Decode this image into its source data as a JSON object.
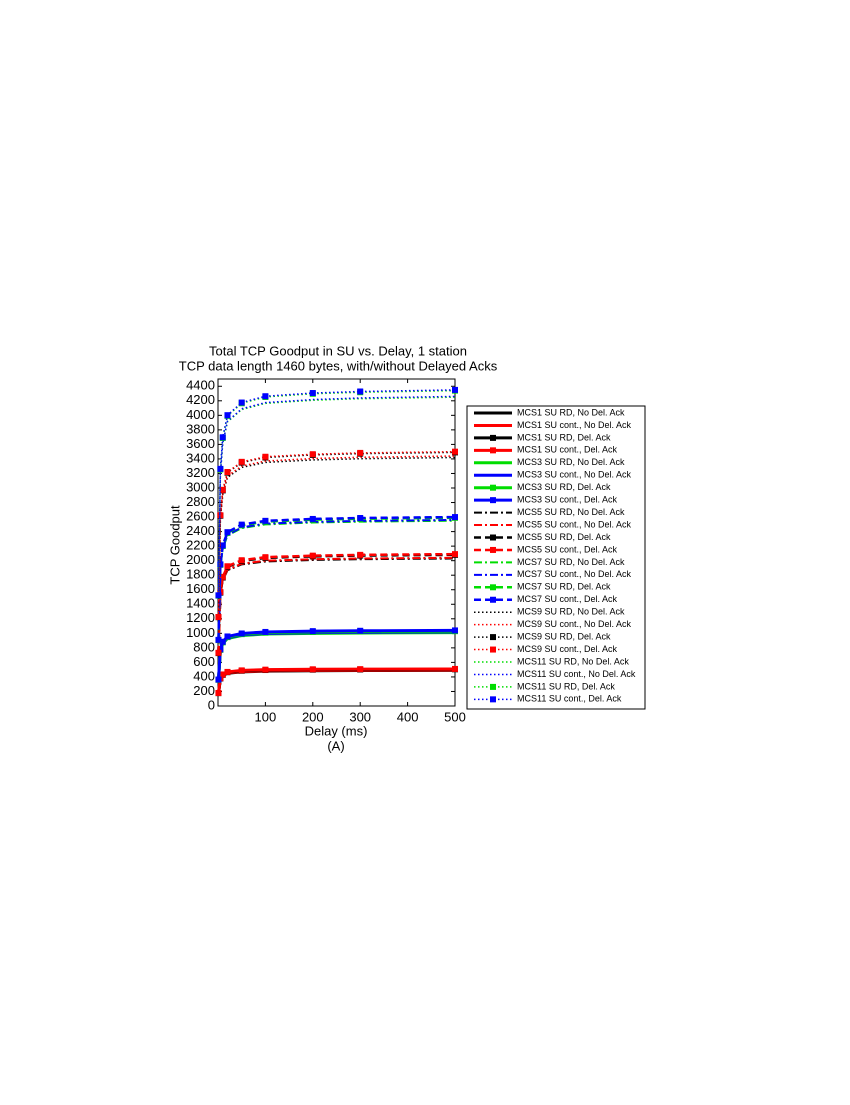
{
  "chart_data": {
    "type": "line",
    "title": "Total TCP Goodput in SU vs. Delay, 1 station",
    "subtitle": "TCP data length 1460 bytes, with/without Delayed Acks",
    "x_label": "Delay (ms)",
    "caption": "(A)",
    "y_label": "TCP Goodput",
    "xlim": [
      0,
      500
    ],
    "xticks": [
      100,
      200,
      300,
      400,
      500
    ],
    "ylim": [
      0,
      4500
    ],
    "yticks": [
      0,
      200,
      400,
      600,
      800,
      1000,
      1200,
      1400,
      1600,
      1800,
      2000,
      2200,
      2400,
      2600,
      2800,
      3000,
      3200,
      3400,
      3600,
      3800,
      4000,
      4200,
      4400
    ],
    "x": [
      1,
      5,
      10,
      20,
      50,
      100,
      200,
      300,
      500
    ],
    "series": [
      {
        "name": "MCS1 SU RD, No Del. Ack",
        "color": "#000000",
        "linestyle": "solid",
        "marker": false,
        "values": [
          172,
          368,
          417,
          451,
          470,
          480,
          485,
          488,
          490
        ]
      },
      {
        "name": "MCS1 SU cont., No Del. Ack",
        "color": "#ff0000",
        "linestyle": "solid",
        "marker": false,
        "values": [
          173,
          371,
          421,
          455,
          475,
          485,
          490,
          493,
          495
        ]
      },
      {
        "name": "MCS1 SU RD, Del. Ack",
        "color": "#000000",
        "linestyle": "solid",
        "marker": true,
        "values": [
          177,
          379,
          429,
          465,
          485,
          495,
          500,
          502,
          505
        ]
      },
      {
        "name": "MCS1 SU cont., Del. Ack",
        "color": "#ff0000",
        "linestyle": "solid",
        "marker": true,
        "values": [
          179,
          383,
          434,
          469,
          490,
          500,
          505,
          507,
          510
        ]
      },
      {
        "name": "MCS3 SU RD, No Del. Ack",
        "color": "#00dd00",
        "linestyle": "solid",
        "marker": false,
        "values": [
          354,
          758,
          859,
          929,
          970,
          990,
          1000,
          1005,
          1010
        ]
      },
      {
        "name": "MCS3 SU cont., No Del. Ack",
        "color": "#0000ff",
        "linestyle": "solid",
        "marker": false,
        "values": [
          357,
          765,
          867,
          938,
          979,
          1000,
          1010,
          1015,
          1020
        ]
      },
      {
        "name": "MCS3 SU RD, Del. Ack",
        "color": "#00dd00",
        "linestyle": "solid",
        "marker": true,
        "values": [
          361,
          773,
          876,
          948,
          989,
          1009,
          1020,
          1025,
          1030
        ]
      },
      {
        "name": "MCS3 SU cont., Del. Ack",
        "color": "#0000ff",
        "linestyle": "solid",
        "marker": true,
        "values": [
          364,
          780,
          884,
          957,
          998,
          1019,
          1030,
          1035,
          1040
        ]
      },
      {
        "name": "MCS5 SU RD, No Del. Ack",
        "color": "#000000",
        "linestyle": "dashdot",
        "marker": false,
        "values": [
          711,
          1523,
          1726,
          1868,
          1949,
          1989,
          2010,
          2020,
          2030
        ]
      },
      {
        "name": "MCS5 SU cont., No Del. Ack",
        "color": "#ff0000",
        "linestyle": "dashdot",
        "marker": false,
        "values": [
          714,
          1530,
          1734,
          1877,
          1958,
          1999,
          2020,
          2030,
          2040
        ]
      },
      {
        "name": "MCS5 SU RD, Del. Ack",
        "color": "#000000",
        "linestyle": "dashed",
        "marker": true,
        "values": [
          728,
          1560,
          1768,
          1914,
          1997,
          2038,
          2059,
          2070,
          2080
        ]
      },
      {
        "name": "MCS5 SU cont., Del. Ack",
        "color": "#ff0000",
        "linestyle": "dashed",
        "marker": true,
        "values": [
          732,
          1568,
          1777,
          1923,
          2006,
          2048,
          2069,
          2080,
          2090
        ]
      },
      {
        "name": "MCS7 SU RD, No Del. Ack",
        "color": "#00dd00",
        "linestyle": "dashdot",
        "marker": false,
        "values": [
          893,
          1913,
          2168,
          2346,
          2448,
          2499,
          2525,
          2537,
          2550
        ]
      },
      {
        "name": "MCS7 SU cont., No Del. Ack",
        "color": "#0000ff",
        "linestyle": "dashdot",
        "marker": false,
        "values": [
          896,
          1920,
          2176,
          2355,
          2458,
          2509,
          2534,
          2547,
          2560
        ]
      },
      {
        "name": "MCS7 SU RD, Del. Ack",
        "color": "#00dd00",
        "linestyle": "dashed",
        "marker": true,
        "values": [
          907,
          1943,
          2202,
          2383,
          2486,
          2538,
          2564,
          2577,
          2590
        ]
      },
      {
        "name": "MCS7 SU cont., Del. Ack",
        "color": "#0000ff",
        "linestyle": "dashed",
        "marker": true,
        "values": [
          910,
          1950,
          2210,
          2392,
          2496,
          2548,
          2574,
          2587,
          2600
        ]
      },
      {
        "name": "MCS9 SU RD, No Del. Ack",
        "color": "#000000",
        "linestyle": "dotted",
        "marker": false,
        "values": [
          1197,
          2565,
          2907,
          3146,
          3283,
          3352,
          3386,
          3403,
          3420
        ]
      },
      {
        "name": "MCS9 SU cont., No Del. Ack",
        "color": "#ff0000",
        "linestyle": "dotted",
        "marker": false,
        "values": [
          1204,
          2580,
          2924,
          3165,
          3302,
          3371,
          3406,
          3423,
          3440
        ]
      },
      {
        "name": "MCS9 SU RD, Del. Ack",
        "color": "#000000",
        "linestyle": "dotted",
        "marker": true,
        "values": [
          1222,
          2618,
          2967,
          3211,
          3350,
          3420,
          3455,
          3473,
          3490
        ]
      },
      {
        "name": "MCS9 SU cont., Del. Ack",
        "color": "#ff0000",
        "linestyle": "dotted",
        "marker": true,
        "values": [
          1225,
          2625,
          2975,
          3220,
          3360,
          3430,
          3465,
          3483,
          3500
        ]
      },
      {
        "name": "MCS11 SU RD, No Del. Ack",
        "color": "#00dd00",
        "linestyle": "dotted",
        "marker": false,
        "values": [
          1488,
          3188,
          3613,
          3910,
          4080,
          4165,
          4208,
          4229,
          4250
        ]
      },
      {
        "name": "MCS11 SU cont., No Del. Ack",
        "color": "#0000ff",
        "linestyle": "dotted",
        "marker": false,
        "values": [
          1491,
          3195,
          3621,
          3919,
          4090,
          4175,
          4217,
          4239,
          4260
        ]
      },
      {
        "name": "MCS11 SU RD, Del. Ack",
        "color": "#00dd00",
        "linestyle": "dotted",
        "marker": true,
        "values": [
          1519,
          3255,
          3689,
          3993,
          4166,
          4253,
          4297,
          4318,
          4340
        ]
      },
      {
        "name": "MCS11 SU cont., Del. Ack",
        "color": "#0000ff",
        "linestyle": "dotted",
        "marker": true,
        "values": [
          1523,
          3263,
          3698,
          4002,
          4176,
          4263,
          4307,
          4328,
          4350
        ]
      }
    ]
  }
}
